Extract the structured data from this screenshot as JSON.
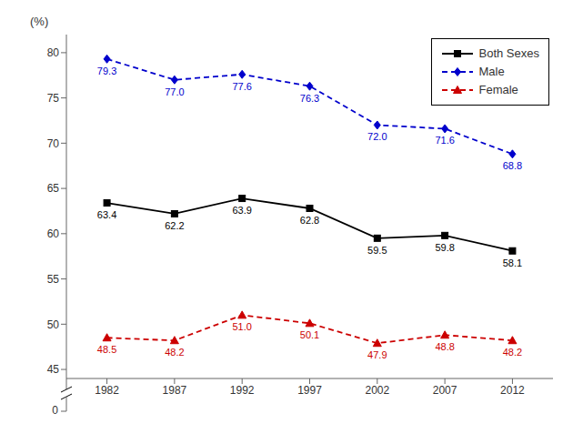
{
  "chart_data": {
    "type": "line",
    "ylabel": "(%)",
    "annotations": [
      "0"
    ],
    "x": [
      1982,
      1987,
      1992,
      1997,
      2002,
      2007,
      2012
    ],
    "series": [
      {
        "name": "Both Sexes",
        "color": "#000000",
        "marker": "square",
        "line_style": "solid",
        "values": [
          63.4,
          62.2,
          63.9,
          62.8,
          59.5,
          59.8,
          58.1
        ],
        "value_labels": [
          "63.4",
          "62.2",
          "63.9",
          "62.8",
          "59.5",
          "59.8",
          "58.1"
        ]
      },
      {
        "name": "Male",
        "color": "#0000cc",
        "marker": "diamond",
        "line_style": "dashed",
        "values": [
          79.3,
          77.0,
          77.6,
          76.3,
          72.0,
          71.6,
          68.8
        ],
        "value_labels": [
          "79.3",
          "77.0",
          "77.6",
          "76.3",
          "72.0",
          "71.6",
          "68.8"
        ]
      },
      {
        "name": "Female",
        "color": "#cc0000",
        "marker": "triangle",
        "line_style": "dashed",
        "values": [
          48.5,
          48.2,
          51.0,
          50.1,
          47.9,
          48.8,
          48.2
        ],
        "value_labels": [
          "48.5",
          "48.2",
          "51.0",
          "50.1",
          "47.9",
          "48.8",
          "48.2"
        ]
      }
    ],
    "xlim": [
      1979,
      2015
    ],
    "xticks": [
      1982,
      1987,
      1992,
      1997,
      2002,
      2007,
      2012
    ],
    "ylim": [
      44,
      82
    ],
    "yticks": [
      45,
      50,
      55,
      60,
      65,
      70,
      75,
      80
    ],
    "legend": "upper right",
    "grid": false,
    "data_labels": true
  }
}
